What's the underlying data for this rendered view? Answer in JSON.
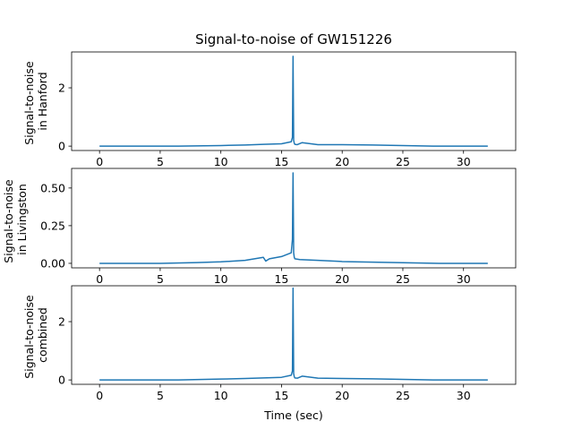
{
  "chart_data": {
    "type": "line",
    "title": "Signal-to-noise of GW151226",
    "xlabel": "Time (sec)",
    "line_color": "#1f77b4",
    "xlim": [
      -2.3,
      34.3
    ],
    "xticks": [
      0,
      5,
      10,
      15,
      20,
      25,
      30
    ],
    "panels": [
      {
        "ylabel_lines": [
          "Signal-to-noise",
          "in Hanford"
        ],
        "ylim": [
          -0.15,
          3.23
        ],
        "yticks": [
          0,
          2
        ],
        "ytick_labels": [
          "0",
          "2"
        ],
        "series": [
          {
            "x": [
              0,
              6.5,
              10,
              12,
              13.5,
              15,
              15.8,
              15.9,
              15.95,
              16.0,
              16.05,
              16.1,
              16.3,
              16.7,
              18,
              20,
              22.5,
              27.5,
              32
            ],
            "y": [
              0,
              0,
              0.02,
              0.04,
              0.06,
              0.08,
              0.15,
              0.3,
              3.08,
              0.2,
              0.1,
              0.06,
              0.05,
              0.12,
              0.05,
              0.05,
              0.04,
              0,
              0
            ]
          }
        ]
      },
      {
        "ylabel_lines": [
          "Signal-to-noise",
          "in Livingston"
        ],
        "ylim": [
          -0.03,
          0.63
        ],
        "yticks": [
          0,
          0.25,
          0.5
        ],
        "ytick_labels": [
          "0.00",
          "0.25",
          "0.50"
        ],
        "series": [
          {
            "x": [
              0,
              5,
              8,
              10,
              12,
              13.5,
              13.7,
              14,
              15,
              15.8,
              15.9,
              15.95,
              16.0,
              16.05,
              16.1,
              16.5,
              18,
              20,
              22.5,
              25,
              28,
              32
            ],
            "y": [
              0,
              0,
              0.005,
              0.01,
              0.02,
              0.04,
              0.015,
              0.03,
              0.045,
              0.07,
              0.16,
              0.6,
              0.07,
              0.04,
              0.03,
              0.025,
              0.02,
              0.012,
              0.008,
              0.004,
              0,
              0
            ]
          }
        ]
      },
      {
        "ylabel_lines": [
          "Signal-to-noise",
          "combined"
        ],
        "ylim": [
          -0.15,
          3.23
        ],
        "yticks": [
          0,
          2
        ],
        "ytick_labels": [
          "0",
          "2"
        ],
        "series": [
          {
            "x": [
              0,
              6.5,
              10,
              12,
              13.5,
              15,
              15.8,
              15.9,
              15.95,
              16.0,
              16.05,
              16.1,
              16.3,
              16.7,
              18,
              20,
              22.5,
              27.5,
              32
            ],
            "y": [
              0,
              0,
              0.03,
              0.05,
              0.07,
              0.09,
              0.16,
              0.31,
              3.15,
              0.22,
              0.11,
              0.07,
              0.06,
              0.13,
              0.06,
              0.05,
              0.04,
              0,
              0
            ]
          }
        ]
      }
    ]
  }
}
